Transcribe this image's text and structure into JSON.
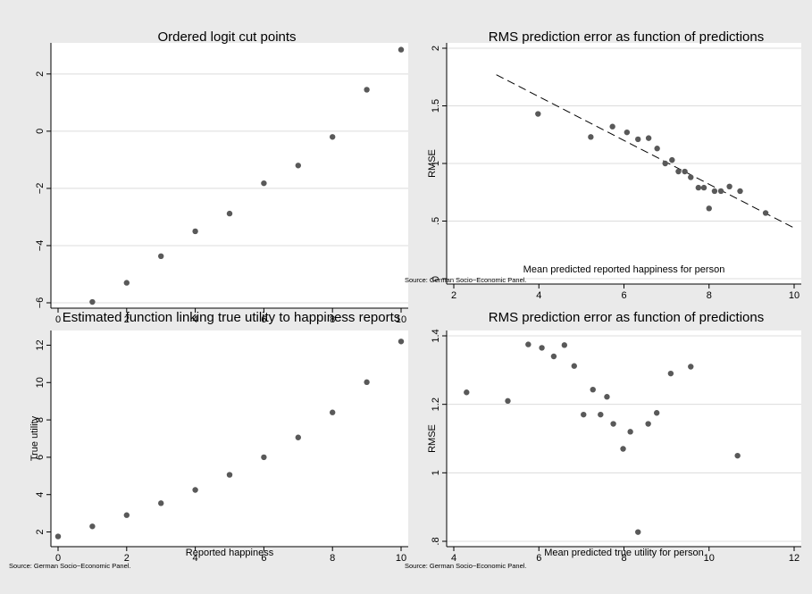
{
  "colors": {
    "background": "#eaeaea",
    "plot_area": "#ffffff",
    "grid": "#dcdcdc",
    "marker": "#595959",
    "axis": "#000000"
  },
  "chart_data": [
    {
      "type": "scatter",
      "title": "Ordered logit cut points",
      "xlabel": "",
      "ylabel": "",
      "note": "",
      "xlim": [
        0,
        10
      ],
      "ylim": [
        -6,
        2.9
      ],
      "xticks": [
        0,
        2,
        4,
        6,
        8,
        10
      ],
      "yticks": [
        -6,
        -4,
        -2,
        0,
        2
      ],
      "yticklabels": [
        "−6",
        "−4",
        "−2",
        "0",
        "2"
      ],
      "ytick_rotation": "vertical",
      "grid": "horizontal",
      "points": [
        [
          1,
          -5.97
        ],
        [
          2,
          -5.3
        ],
        [
          3,
          -4.37
        ],
        [
          4,
          -3.5
        ],
        [
          5,
          -2.88
        ],
        [
          6,
          -1.82
        ],
        [
          7,
          -1.2
        ],
        [
          8,
          -0.2
        ],
        [
          9,
          1.45
        ],
        [
          10,
          2.85
        ]
      ]
    },
    {
      "type": "scatter",
      "title": "RMS prediction error as function of predictions",
      "xlabel": "Mean predicted reported happiness for person",
      "ylabel": "RMSE",
      "note": "Source: German Socio−Economic Panel.",
      "xlim": [
        2,
        10
      ],
      "ylim": [
        0,
        2
      ],
      "xticks": [
        2,
        4,
        6,
        8,
        10
      ],
      "yticks": [
        0,
        0.5,
        1,
        1.5,
        2
      ],
      "yticklabels": [
        "0",
        ".5",
        "1",
        "1.5",
        "2"
      ],
      "ytick_rotation": "vertical",
      "grid": "horizontal",
      "points": [
        [
          3.98,
          1.43
        ],
        [
          5.22,
          1.23
        ],
        [
          5.73,
          1.32
        ],
        [
          6.07,
          1.27
        ],
        [
          6.33,
          1.21
        ],
        [
          6.58,
          1.22
        ],
        [
          6.78,
          1.13
        ],
        [
          6.97,
          1.0
        ],
        [
          7.13,
          1.03
        ],
        [
          7.28,
          0.93
        ],
        [
          7.43,
          0.93
        ],
        [
          7.57,
          0.88
        ],
        [
          7.75,
          0.79
        ],
        [
          7.88,
          0.79
        ],
        [
          8.0,
          0.61
        ],
        [
          8.13,
          0.76
        ],
        [
          8.28,
          0.76
        ],
        [
          8.48,
          0.8
        ],
        [
          8.73,
          0.76
        ],
        [
          9.33,
          0.57
        ]
      ],
      "fit_line": {
        "x": [
          3,
          10
        ],
        "y": [
          1.77,
          0.44
        ],
        "style": "dashed"
      }
    },
    {
      "type": "scatter",
      "title": "Estimated function linking true utility to happiness reports",
      "xlabel": "Reported happiness",
      "ylabel": "True utility",
      "note": "Source: German Socio−Economic Panel.",
      "xlim": [
        0,
        10
      ],
      "ylim": [
        1.5,
        12.5
      ],
      "xticks": [
        0,
        2,
        4,
        6,
        8,
        10
      ],
      "yticks": [
        2,
        4,
        6,
        8,
        10,
        12
      ],
      "yticklabels": [
        "2",
        "4",
        "6",
        "8",
        "10",
        "12"
      ],
      "ytick_rotation": "vertical",
      "grid": "none",
      "points": [
        [
          0,
          1.76
        ],
        [
          1,
          2.3
        ],
        [
          2,
          2.9
        ],
        [
          3,
          3.54
        ],
        [
          4,
          4.25
        ],
        [
          5,
          5.06
        ],
        [
          6,
          6.0
        ],
        [
          7,
          7.06
        ],
        [
          8,
          8.4
        ],
        [
          9,
          10.02
        ],
        [
          10,
          12.2
        ]
      ]
    },
    {
      "type": "scatter",
      "title": "RMS prediction error as function of predictions",
      "xlabel": "Mean predicted true utility for person",
      "ylabel": "RMSE",
      "note": "Source: German Socio−Economic Panel.",
      "xlim": [
        4,
        12
      ],
      "ylim": [
        0.8,
        1.4
      ],
      "xticks": [
        4,
        6,
        8,
        10,
        12
      ],
      "yticks": [
        0.8,
        1,
        1.2,
        1.4
      ],
      "yticklabels": [
        ".8",
        "1",
        "1.2",
        "1.4"
      ],
      "ytick_rotation": "vertical",
      "grid": "horizontal",
      "points": [
        [
          4.3,
          1.235
        ],
        [
          5.27,
          1.21
        ],
        [
          5.75,
          1.375
        ],
        [
          6.07,
          1.365
        ],
        [
          6.35,
          1.34
        ],
        [
          6.6,
          1.373
        ],
        [
          6.83,
          1.312
        ],
        [
          7.05,
          1.17
        ],
        [
          7.27,
          1.243
        ],
        [
          7.45,
          1.17
        ],
        [
          7.6,
          1.222
        ],
        [
          7.75,
          1.143
        ],
        [
          7.98,
          1.07
        ],
        [
          8.15,
          1.12
        ],
        [
          8.33,
          0.827
        ],
        [
          8.57,
          1.143
        ],
        [
          8.77,
          1.175
        ],
        [
          9.1,
          1.29
        ],
        [
          9.57,
          1.31
        ],
        [
          10.67,
          1.05
        ]
      ]
    }
  ]
}
